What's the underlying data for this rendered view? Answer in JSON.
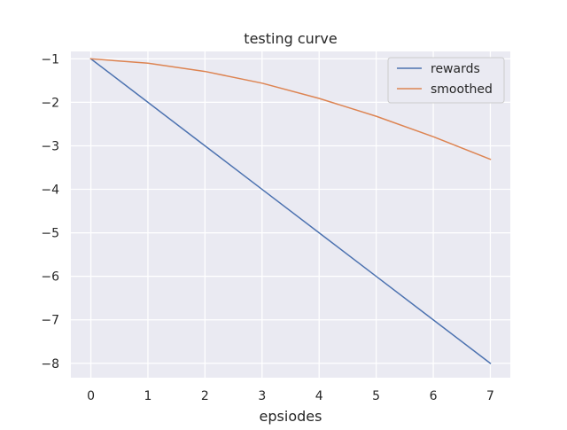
{
  "chart_data": {
    "type": "line",
    "title": "testing curve",
    "xlabel": "epsiodes",
    "ylabel": "",
    "x": [
      0,
      1,
      2,
      3,
      4,
      5,
      6,
      7
    ],
    "xticks": [
      "0",
      "1",
      "2",
      "3",
      "4",
      "5",
      "6",
      "7"
    ],
    "yticks": [
      "−1",
      "−2",
      "−3",
      "−4",
      "−5",
      "−6",
      "−7",
      "−8"
    ],
    "ytick_values": [
      -1,
      -2,
      -3,
      -4,
      -5,
      -6,
      -7,
      -8
    ],
    "xlim": [
      -0.35,
      7.35
    ],
    "ylim": [
      -8.33,
      -0.83
    ],
    "grid": true,
    "legend_position": "top-right",
    "series": [
      {
        "name": "rewards",
        "color": "#4c72b0",
        "values": [
          -1,
          -2,
          -3,
          -4,
          -5,
          -6,
          -7,
          -8
        ]
      },
      {
        "name": "smoothed",
        "color": "#dd8452",
        "values": [
          -1.0,
          -1.1,
          -1.29,
          -1.56,
          -1.91,
          -2.32,
          -2.79,
          -3.31
        ]
      }
    ]
  }
}
